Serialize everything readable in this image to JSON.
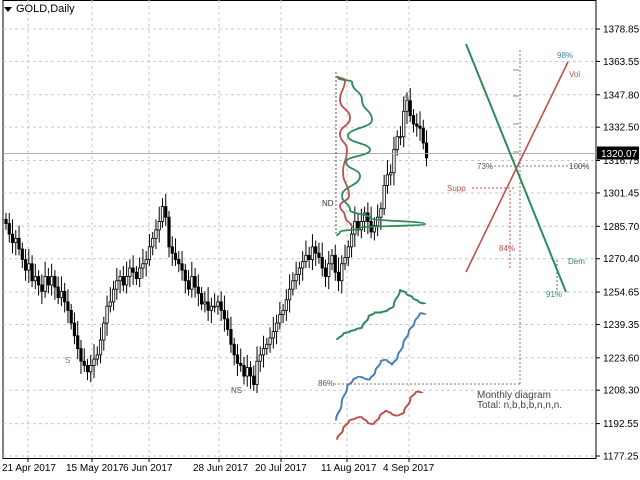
{
  "header": {
    "symbol_label": "GOLD,Daily"
  },
  "price_axis": {
    "ticks": [
      "1378.85",
      "1363.55",
      "1347.80",
      "1332.50",
      "1316.75",
      "1301.45",
      "1285.70",
      "1270.40",
      "1254.65",
      "1239.35",
      "1223.60",
      "1208.30",
      "1192.55",
      "1177.25"
    ],
    "current_price": "1320.07"
  },
  "time_axis": {
    "ticks": [
      "21 Apr 2017",
      "15 May 2017",
      "6 Jun 2017",
      "28 Jun 2017",
      "20 Jul 2017",
      "11 Aug 2017",
      "4 Sep 2017"
    ]
  },
  "annotations": {
    "nd": "ND",
    "ns": "NS",
    "s1": "S",
    "s2": "S",
    "pct_73": "73%",
    "pct_100": "100%",
    "pct_84": "84%",
    "pct_91": "91%",
    "pct_98": "98%",
    "pct_86": "86%",
    "supp": "Supp",
    "dem": "Dem",
    "vol": "Vol",
    "monthly_title": "Monthly diagram",
    "monthly_total": "Total: n,b,b,b,n,n,n."
  },
  "colors": {
    "grid": "#c8c8c8",
    "candle": "#000000",
    "red": "#c0504d",
    "green": "#2e8b57",
    "blue": "#4a7fb5",
    "current_line": "#b0b0b0"
  },
  "chart_data": {
    "type": "candlestick",
    "title": "GOLD,Daily",
    "ylim": [
      1177.25,
      1386
    ],
    "x_ticks": [
      "21 Apr 2017",
      "15 May 2017",
      "6 Jun 2017",
      "28 Jun 2017",
      "20 Jul 2017",
      "11 Aug 2017",
      "4 Sep 2017"
    ],
    "y_ticks": [
      1378.85,
      1363.55,
      1347.8,
      1332.5,
      1316.75,
      1301.45,
      1285.7,
      1270.4,
      1254.65,
      1239.35,
      1223.6,
      1208.3,
      1192.55,
      1177.25
    ],
    "last_price": 1320.07,
    "grid": true,
    "closes": [
      1287,
      1282,
      1278,
      1280,
      1275,
      1270,
      1265,
      1268,
      1260,
      1262,
      1258,
      1255,
      1262,
      1258,
      1262,
      1257,
      1252,
      1255,
      1250,
      1246,
      1240,
      1234,
      1228,
      1222,
      1220,
      1217,
      1220,
      1223,
      1225,
      1232,
      1240,
      1248,
      1250,
      1256,
      1260,
      1262,
      1258,
      1262,
      1266,
      1264,
      1261,
      1266,
      1268,
      1270,
      1276,
      1280,
      1284,
      1288,
      1295,
      1290,
      1276,
      1273,
      1270,
      1268,
      1265,
      1260,
      1256,
      1262,
      1257,
      1254,
      1249,
      1250,
      1246,
      1248,
      1248,
      1250,
      1246,
      1242,
      1237,
      1230,
      1225,
      1221,
      1220,
      1215,
      1219,
      1215,
      1211,
      1222,
      1225,
      1228,
      1230,
      1233,
      1236,
      1240,
      1244,
      1246,
      1251,
      1256,
      1260,
      1263,
      1266,
      1269,
      1272,
      1270,
      1276,
      1273,
      1271,
      1266,
      1262,
      1268,
      1272,
      1264,
      1260,
      1268,
      1271,
      1276,
      1282,
      1288,
      1284,
      1288,
      1292,
      1288,
      1283,
      1286,
      1290,
      1294,
      1305,
      1310,
      1311,
      1322,
      1328,
      1328,
      1340,
      1345,
      1338,
      1334,
      1333,
      1332,
      1325,
      1318
    ],
    "monthly_curves": {
      "green": [
        1232,
        1235,
        1236,
        1237,
        1238,
        1243,
        1245,
        1245,
        1246,
        1248,
        1256,
        1254,
        1252,
        1250,
        1249
      ],
      "blue": [
        1194,
        1202,
        1210,
        1213,
        1215,
        1214,
        1213,
        1217,
        1222,
        1223,
        1220,
        1224,
        1230,
        1236,
        1240,
        1245,
        1244
      ],
      "red": [
        1185,
        1190,
        1194,
        1195,
        1196,
        1193,
        1192,
        1196,
        1199,
        1197,
        1196,
        1198,
        1204,
        1208,
        1207
      ]
    }
  }
}
